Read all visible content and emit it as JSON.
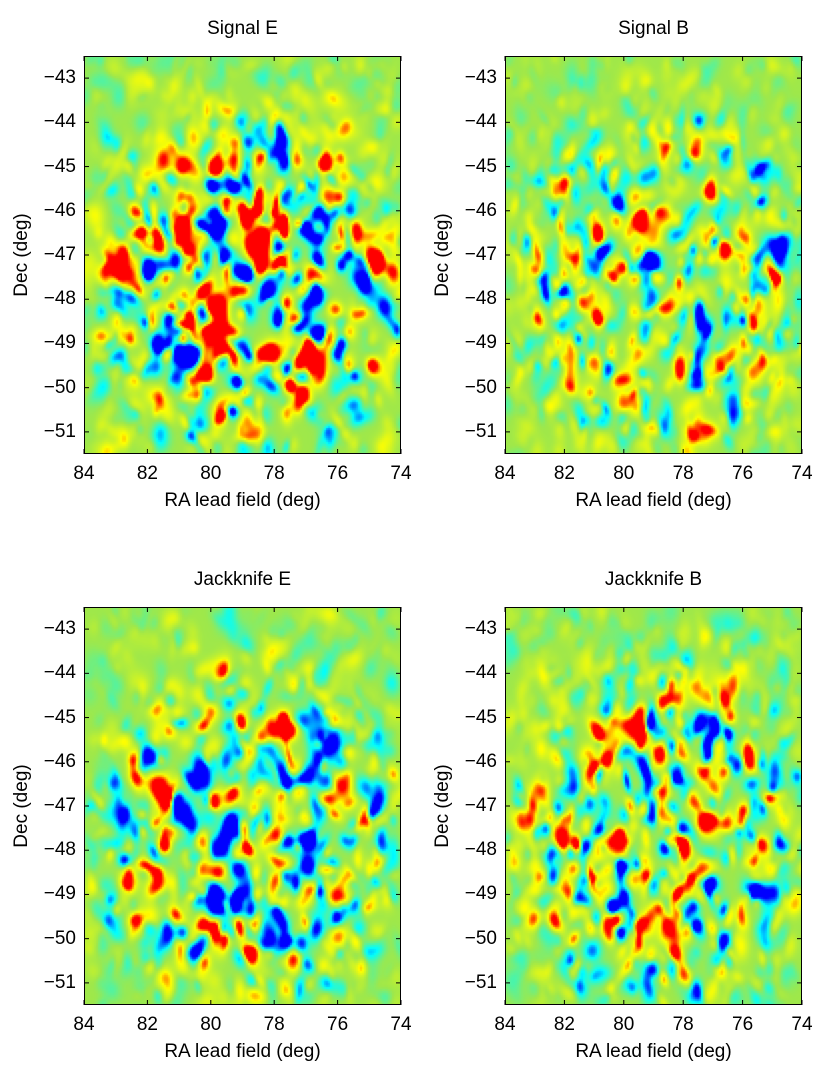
{
  "colors": {
    "colormap": [
      "#0000ff",
      "#00ffff",
      "#9fe84a",
      "#ffff00",
      "#ff0000"
    ],
    "background_field": "#9fe84a",
    "axes": "#000000"
  },
  "chart_data": [
    {
      "type": "heatmap",
      "title": "Signal E",
      "xlabel": "RA lead field (deg)",
      "ylabel": "Dec (deg)",
      "xlim": [
        84,
        74
      ],
      "ylim": [
        -51.5,
        -42.5
      ],
      "xticks": [
        84,
        82,
        80,
        78,
        76,
        74
      ],
      "yticks": [
        -43,
        -44,
        -45,
        -46,
        -47,
        -48,
        -49,
        -50,
        -51
      ],
      "xtick_labels": [
        "84",
        "82",
        "80",
        "78",
        "76",
        "74"
      ],
      "ytick_labels": [
        "−43",
        "−44",
        "−45",
        "−46",
        "−47",
        "−48",
        "−49",
        "−50",
        "−51"
      ],
      "field": {
        "center_ra": 78.8,
        "center_dec": -47.6,
        "radius_ra": 4.4,
        "radius_dec": 3.4,
        "amplitude": 1.0,
        "seed": 11
      }
    },
    {
      "type": "heatmap",
      "title": "Signal B",
      "xlabel": "RA lead field (deg)",
      "ylabel": "Dec (deg)",
      "xlim": [
        84,
        74
      ],
      "ylim": [
        -51.5,
        -42.5
      ],
      "xticks": [
        84,
        82,
        80,
        78,
        76,
        74
      ],
      "yticks": [
        -43,
        -44,
        -45,
        -46,
        -47,
        -48,
        -49,
        -50,
        -51
      ],
      "xtick_labels": [
        "84",
        "82",
        "80",
        "78",
        "76",
        "74"
      ],
      "ytick_labels": [
        "−43",
        "−44",
        "−45",
        "−46",
        "−47",
        "−48",
        "−49",
        "−50",
        "−51"
      ],
      "field": {
        "center_ra": 78.8,
        "center_dec": -47.6,
        "radius_ra": 4.6,
        "radius_dec": 3.6,
        "amplitude": 0.72,
        "seed": 23
      }
    },
    {
      "type": "heatmap",
      "title": "Jackknife E",
      "xlabel": "RA lead field (deg)",
      "ylabel": "Dec (deg)",
      "xlim": [
        84,
        74
      ],
      "ylim": [
        -51.5,
        -42.5
      ],
      "xticks": [
        84,
        82,
        80,
        78,
        76,
        74
      ],
      "yticks": [
        -43,
        -44,
        -45,
        -46,
        -47,
        -48,
        -49,
        -50,
        -51
      ],
      "xtick_labels": [
        "84",
        "82",
        "80",
        "78",
        "76",
        "74"
      ],
      "ytick_labels": [
        "−43",
        "−44",
        "−45",
        "−46",
        "−47",
        "−48",
        "−49",
        "−50",
        "−51"
      ],
      "field": {
        "center_ra": 78.8,
        "center_dec": -47.6,
        "radius_ra": 4.6,
        "radius_dec": 3.6,
        "amplitude": 0.75,
        "seed": 37
      }
    },
    {
      "type": "heatmap",
      "title": "Jackknife B",
      "xlabel": "RA lead field (deg)",
      "ylabel": "Dec (deg)",
      "xlim": [
        84,
        74
      ],
      "ylim": [
        -51.5,
        -42.5
      ],
      "xticks": [
        84,
        82,
        80,
        78,
        76,
        74
      ],
      "yticks": [
        -43,
        -44,
        -45,
        -46,
        -47,
        -48,
        -49,
        -50,
        -51
      ],
      "xtick_labels": [
        "84",
        "82",
        "80",
        "78",
        "76",
        "74"
      ],
      "ytick_labels": [
        "−43",
        "−44",
        "−45",
        "−46",
        "−47",
        "−48",
        "−49",
        "−50",
        "−51"
      ],
      "field": {
        "center_ra": 78.8,
        "center_dec": -47.6,
        "radius_ra": 4.6,
        "radius_dec": 3.6,
        "amplitude": 0.78,
        "seed": 53
      }
    }
  ]
}
